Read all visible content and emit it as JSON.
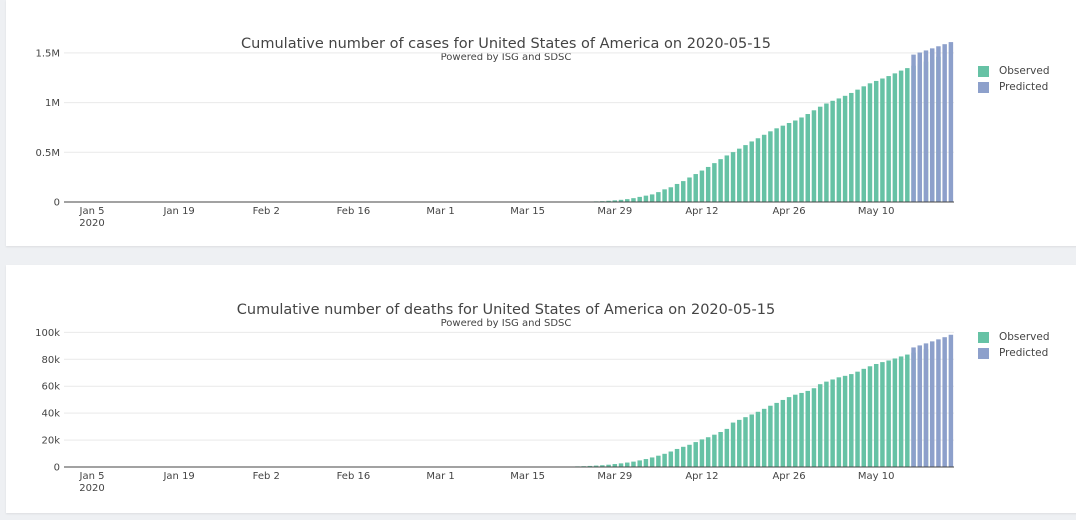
{
  "colors": {
    "observed": "#66c2a5",
    "predicted": "#8da0cb"
  },
  "chart_data": [
    {
      "type": "bar",
      "title": "Cumulative number of cases for United States of America on 2020-05-15",
      "subtitle": "Powered by ISG and SDSC",
      "x_start": "2020-01-01",
      "x_ticks": [
        "Jan 5",
        "Jan 19",
        "Feb 2",
        "Feb 16",
        "Mar 1",
        "Mar 15",
        "Mar 29",
        "Apr 12",
        "Apr 26",
        "May 10"
      ],
      "x_tick_year": "2020",
      "y_ticks": [
        "0",
        "0.5M",
        "1M",
        "1.5M"
      ],
      "ylim": [
        0,
        1620000
      ],
      "legend": [
        "Observed",
        "Predicted"
      ],
      "series": [
        {
          "name": "Observed",
          "start": "2020-01-21",
          "values": [
            1,
            1,
            1,
            1,
            2,
            2,
            5,
            5,
            5,
            5,
            6,
            7,
            8,
            11,
            11,
            11,
            12,
            12,
            12,
            12,
            12,
            13,
            13,
            14,
            14,
            14,
            14,
            14,
            14,
            15,
            15,
            15,
            15,
            15,
            15,
            15,
            15,
            15,
            15,
            15,
            15,
            16,
            16,
            16,
            16,
            16,
            24,
            30,
            53,
            73,
            99,
            118,
            160,
            217,
            317,
            432,
            501,
            639,
            991,
            1302,
            1674,
            2177,
            2727,
            3494,
            4650,
            6387,
            8510,
            12016,
            16689,
            21945,
            28879,
            38678,
            51453,
            63930,
            76442,
            99426,
            127346,
            148220,
            181570,
            210280,
            246640,
            281170,
            316430,
            352730,
            391160,
            431180,
            468400,
            502050,
            536770,
            572510,
            609340,
            641440,
            676430,
            711190,
            741440,
            768120,
            794970,
            820110,
            850550,
            885230,
            922730,
            958980,
            990970,
            1018460,
            1042140,
            1068420,
            1097220,
            1130580,
            1163950,
            1194220,
            1218170,
            1242580,
            1267210,
            1294330,
            1322280,
            1347200,
            1371560,
            1392010,
            1412480,
            1436260,
            1461100
          ]
        },
        {
          "name": "Predicted",
          "start": "2020-05-16",
          "values": [
            1483000,
            1504000,
            1525000,
            1546000,
            1567000,
            1588000,
            1609000
          ]
        }
      ]
    },
    {
      "type": "bar",
      "title": "Cumulative number of deaths for United States of America on 2020-05-15",
      "subtitle": "Powered by ISG and SDSC",
      "x_start": "2020-01-01",
      "x_ticks": [
        "Jan 5",
        "Jan 19",
        "Feb 2",
        "Feb 16",
        "Mar 1",
        "Mar 15",
        "Mar 29",
        "Apr 12",
        "Apr 26",
        "May 10"
      ],
      "x_tick_year": "2020",
      "y_ticks": [
        "0",
        "20k",
        "40k",
        "60k",
        "80k",
        "100k"
      ],
      "ylim": [
        0,
        101000
      ],
      "legend": [
        "Observed",
        "Predicted"
      ],
      "series": [
        {
          "name": "Observed",
          "start": "2020-01-21",
          "values": [
            0,
            0,
            0,
            0,
            0,
            0,
            0,
            0,
            0,
            0,
            0,
            0,
            0,
            0,
            0,
            0,
            0,
            0,
            0,
            0,
            0,
            0,
            0,
            0,
            0,
            0,
            0,
            0,
            0,
            0,
            0,
            0,
            0,
            0,
            0,
            0,
            0,
            0,
            0,
            0,
            1,
            1,
            6,
            9,
            11,
            12,
            15,
            19,
            22,
            26,
            30,
            38,
            41,
            48,
            57,
            68,
            86,
            109,
            150,
            205,
            260,
            340,
            471,
            590,
            800,
            1050,
            1300,
            1700,
            2200,
            2700,
            3300,
            4000,
            4900,
            5900,
            7100,
            8400,
            9800,
            11500,
            13400,
            15000,
            16500,
            18500,
            20500,
            22100,
            24000,
            26000,
            28300,
            33000,
            35000,
            37000,
            39000,
            41000,
            43200,
            45500,
            47600,
            49800,
            51900,
            53700,
            55000,
            56500,
            58500,
            61500,
            63400,
            65000,
            66600,
            67700,
            69000,
            70800,
            72900,
            74800,
            76500,
            77900,
            79100,
            80600,
            82100,
            83500,
            84900,
            86400,
            87500
          ]
        },
        {
          "name": "Predicted",
          "start": "2020-05-16",
          "values": [
            88800,
            90300,
            91800,
            93300,
            94800,
            96400,
            98200
          ]
        }
      ]
    }
  ]
}
